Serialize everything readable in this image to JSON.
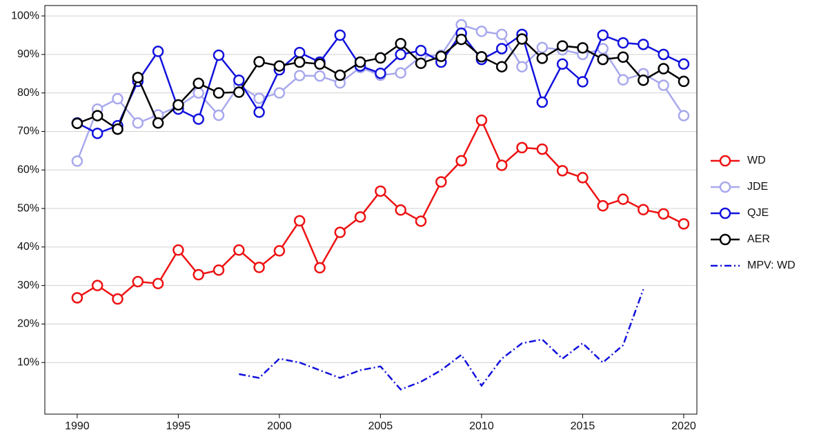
{
  "chart_data": {
    "type": "line",
    "x": [
      1990,
      1991,
      1992,
      1993,
      1994,
      1995,
      1996,
      1997,
      1998,
      1999,
      2000,
      2001,
      2002,
      2003,
      2004,
      2005,
      2006,
      2007,
      2008,
      2009,
      2010,
      2011,
      2012,
      2013,
      2014,
      2015,
      2016,
      2017,
      2018,
      2019,
      2020
    ],
    "series": [
      {
        "name": "WD",
        "color": "#ee1111",
        "markers": true,
        "linestyle": "solid",
        "values": [
          26.8,
          30,
          26.5,
          31,
          30.5,
          39.2,
          32.8,
          34,
          39.2,
          34.7,
          39,
          46.8,
          34.6,
          43.8,
          47.8,
          54.5,
          49.6,
          46.7,
          56.9,
          62.4,
          72.9,
          61.2,
          65.8,
          65.4,
          59.8,
          58,
          50.7,
          52.4,
          49.7,
          48.6,
          46
        ]
      },
      {
        "name": "JDE",
        "color": "#a8a8ee",
        "markers": true,
        "linestyle": "solid",
        "values": [
          62.3,
          75.8,
          78.5,
          72.2,
          74.3,
          76.5,
          80,
          74.2,
          82,
          78.6,
          80,
          84.5,
          84.4,
          82.6,
          86.6,
          84.6,
          85.2,
          89.5,
          89.8,
          97.7,
          96,
          95.2,
          86.8,
          91.8,
          91.2,
          90,
          91.5,
          83.4,
          85,
          82,
          74.1
        ]
      },
      {
        "name": "QJE",
        "color": "#1111dd",
        "markers": true,
        "linestyle": "solid",
        "values": [
          72.2,
          69.5,
          71.5,
          83,
          90.8,
          75.8,
          73.2,
          89.8,
          83.3,
          75,
          86,
          90.5,
          88,
          95,
          87,
          85.1,
          90,
          91,
          88,
          95.5,
          88.7,
          91.5,
          95.2,
          77.6,
          87.5,
          82.9,
          95,
          93,
          92.6,
          90,
          87.5
        ]
      },
      {
        "name": "AER",
        "color": "#000000",
        "markers": true,
        "linestyle": "solid",
        "values": [
          72.1,
          74.1,
          70.6,
          84,
          72.2,
          76.9,
          82.5,
          80,
          80.2,
          88.1,
          87,
          88,
          87.5,
          84.6,
          88,
          89.1,
          92.8,
          87.7,
          89.5,
          93.9,
          89.4,
          86.8,
          94,
          89,
          92.2,
          91.7,
          88.7,
          89.3,
          83.3,
          86.3,
          83
        ]
      },
      {
        "name": "MPV: WD",
        "color": "#1111dd",
        "markers": false,
        "linestyle": "dashdot",
        "values": [
          null,
          null,
          null,
          null,
          null,
          null,
          null,
          null,
          7,
          6,
          11,
          10,
          8,
          6,
          8,
          9,
          3,
          5,
          8,
          12,
          4,
          11,
          15,
          16,
          11,
          15,
          10,
          14.5,
          29,
          null,
          null
        ]
      }
    ],
    "xlim": [
      1988.4,
      2020.65
    ],
    "xticks": [
      1990,
      1995,
      2000,
      2005,
      2010,
      2015,
      2020
    ],
    "ylim": [
      -3.4,
      102.7
    ],
    "yticks": [
      {
        "value": 10,
        "label": "10%"
      },
      {
        "value": 20,
        "label": "20%"
      },
      {
        "value": 30,
        "label": "30%"
      },
      {
        "value": 40,
        "label": "40%"
      },
      {
        "value": 50,
        "label": "50%"
      },
      {
        "value": 60,
        "label": "60%"
      },
      {
        "value": 70,
        "label": "70%"
      },
      {
        "value": 80,
        "label": "80%"
      },
      {
        "value": 90,
        "label": "90%"
      },
      {
        "value": 100,
        "label": "100%"
      }
    ],
    "grid": true,
    "legend": "right"
  }
}
